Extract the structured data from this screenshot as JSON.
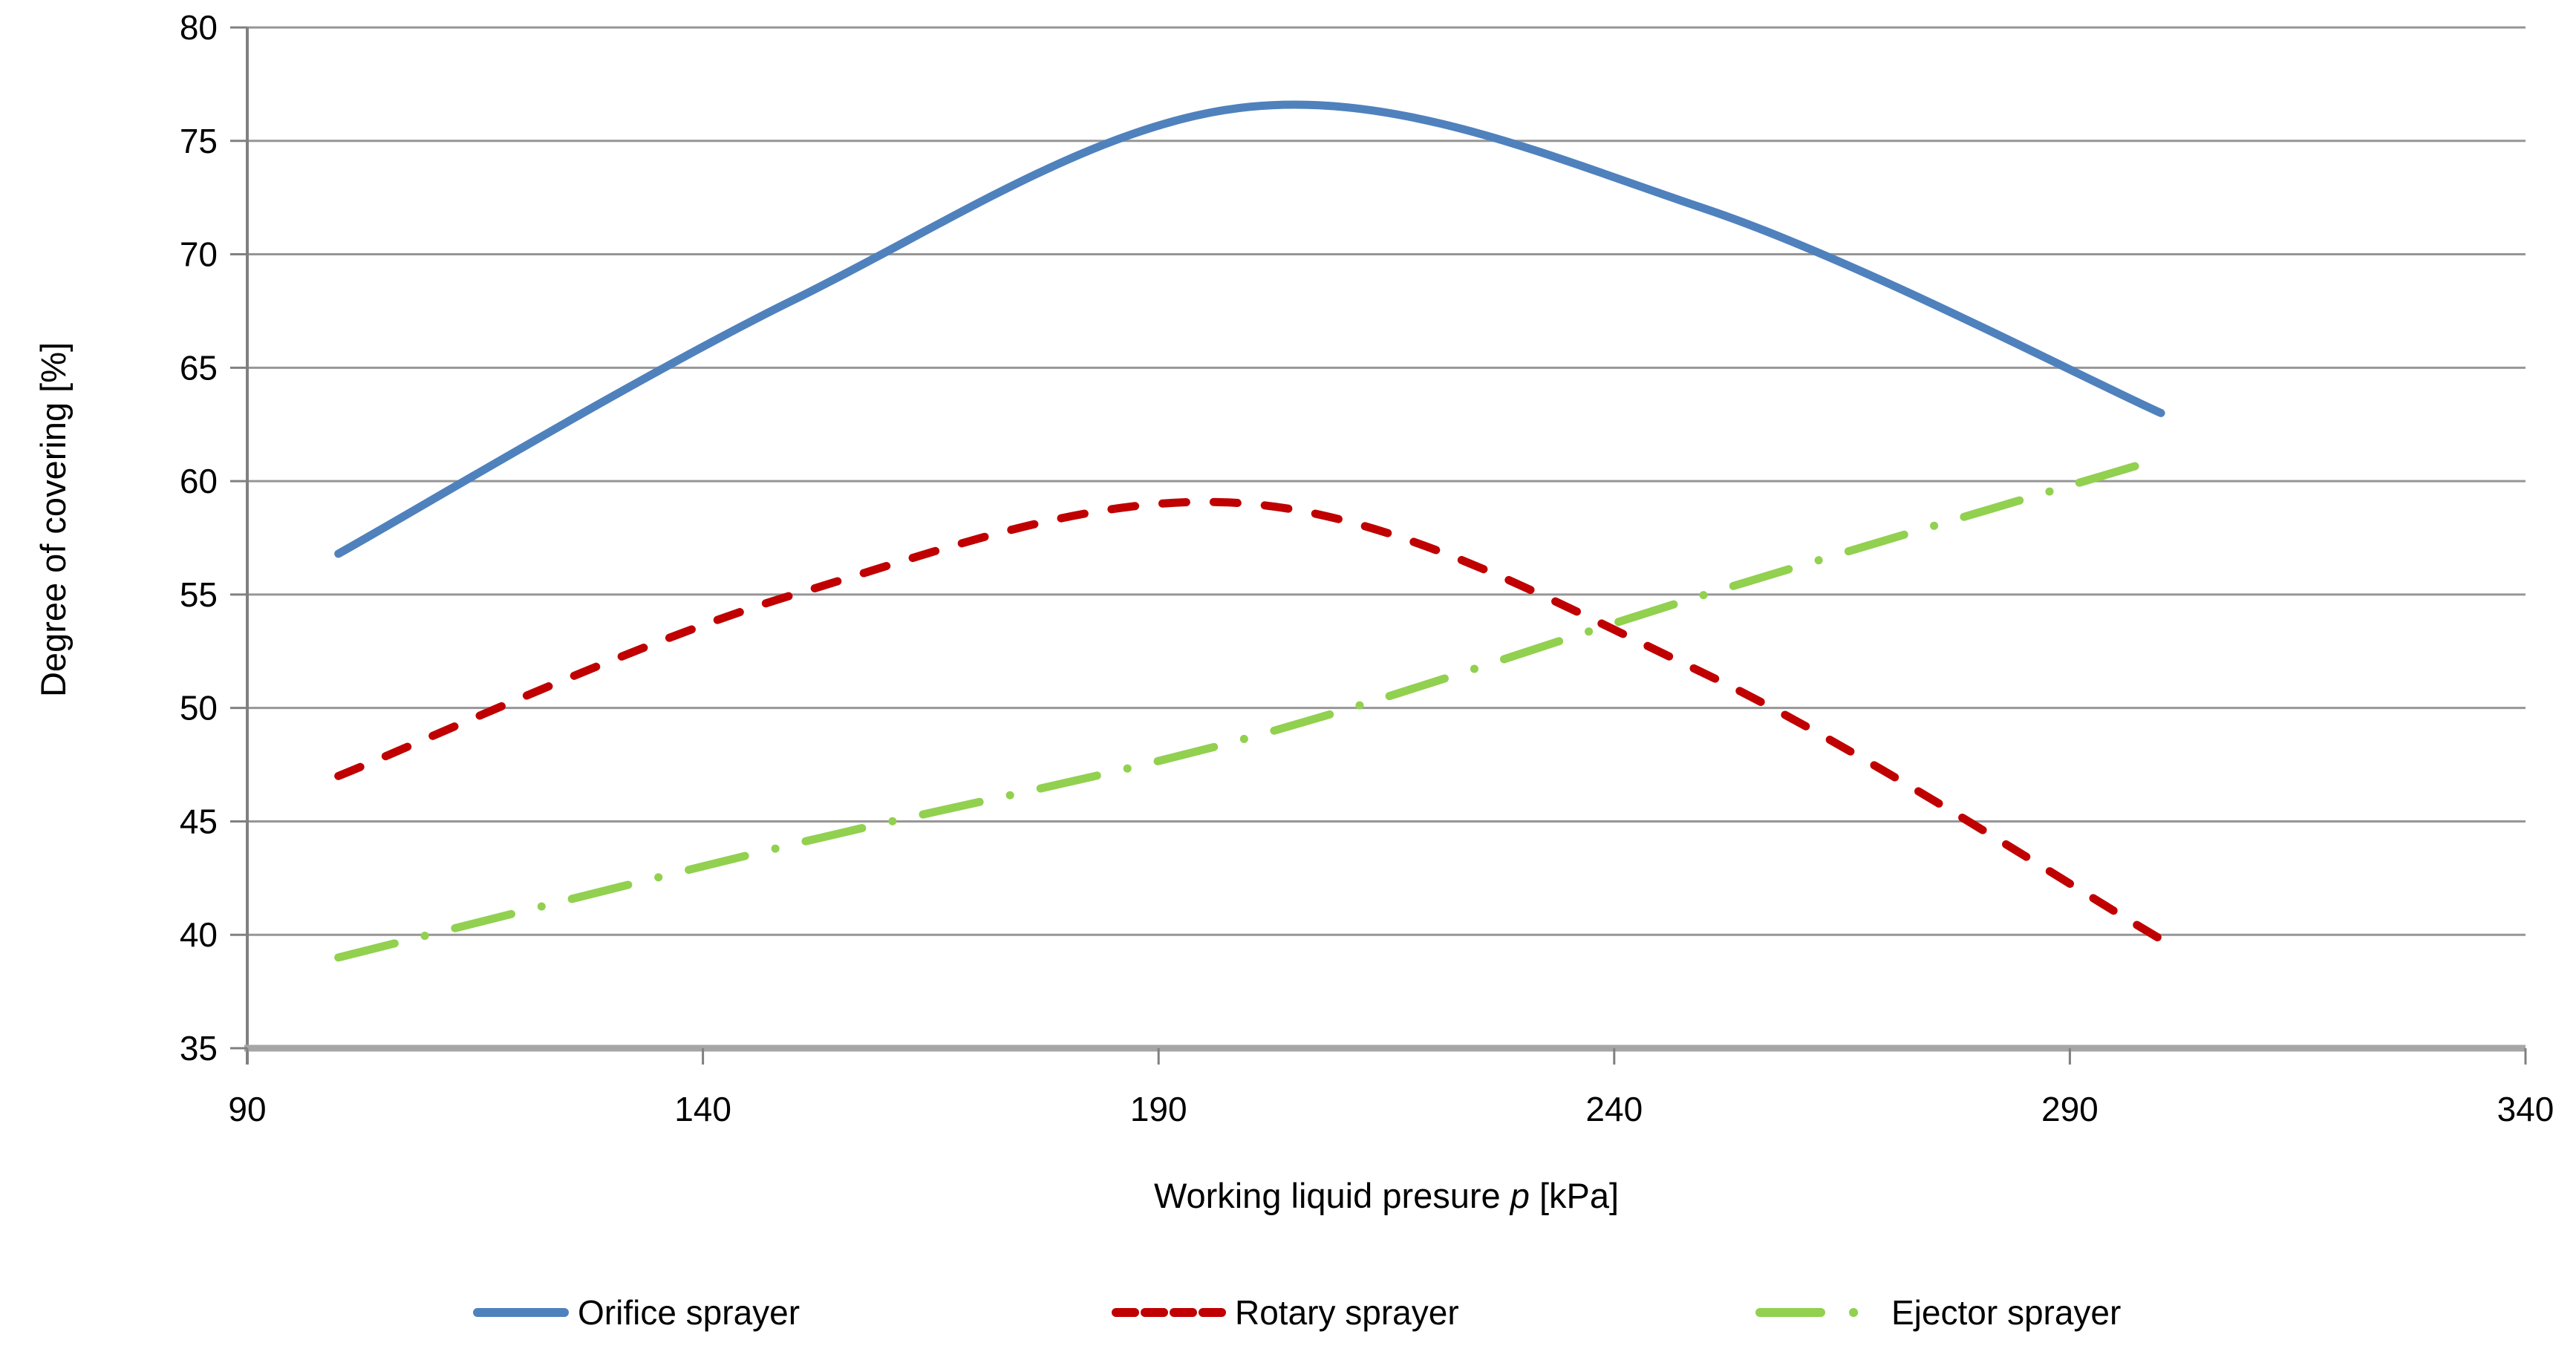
{
  "chart_data": {
    "type": "line",
    "title": "",
    "ylabel": "Degree of covering [%]",
    "xlabel_prefix": "Working liquid presure ",
    "xlabel_italic": "p",
    "xlabel_suffix": " [kPa]",
    "xlim": [
      90,
      340
    ],
    "ylim": [
      35,
      80
    ],
    "x_ticks": [
      "90",
      "140",
      "190",
      "240",
      "290",
      "340"
    ],
    "y_ticks": [
      "35",
      "40",
      "45",
      "50",
      "55",
      "60",
      "65",
      "70",
      "75",
      "80"
    ],
    "grid": "horizontal-only",
    "gridline_color": "#969696",
    "axis_color": "#808080",
    "baseline_color": "#A6A6A6",
    "legend_position": "bottom",
    "series": [
      {
        "name": "Orifice sprayer",
        "color": "#4F81BD",
        "line_style": "solid",
        "points": [
          [
            100,
            56.8
          ],
          [
            150,
            68.0
          ],
          [
            200,
            76.5
          ],
          [
            250,
            72.0
          ],
          [
            300,
            63.0
          ]
        ]
      },
      {
        "name": "Rotary sprayer",
        "color": "#C00000",
        "line_style": "dashed",
        "points": [
          [
            100,
            47.0
          ],
          [
            150,
            55.0
          ],
          [
            200,
            59.0
          ],
          [
            250,
            51.5
          ],
          [
            300,
            39.8
          ]
        ]
      },
      {
        "name": "Ejector sprayer",
        "color": "#92D050",
        "line_style": "dash-dot",
        "points": [
          [
            100,
            39.0
          ],
          [
            150,
            44.0
          ],
          [
            200,
            48.7
          ],
          [
            250,
            55.0
          ],
          [
            300,
            61.0
          ]
        ]
      }
    ]
  }
}
